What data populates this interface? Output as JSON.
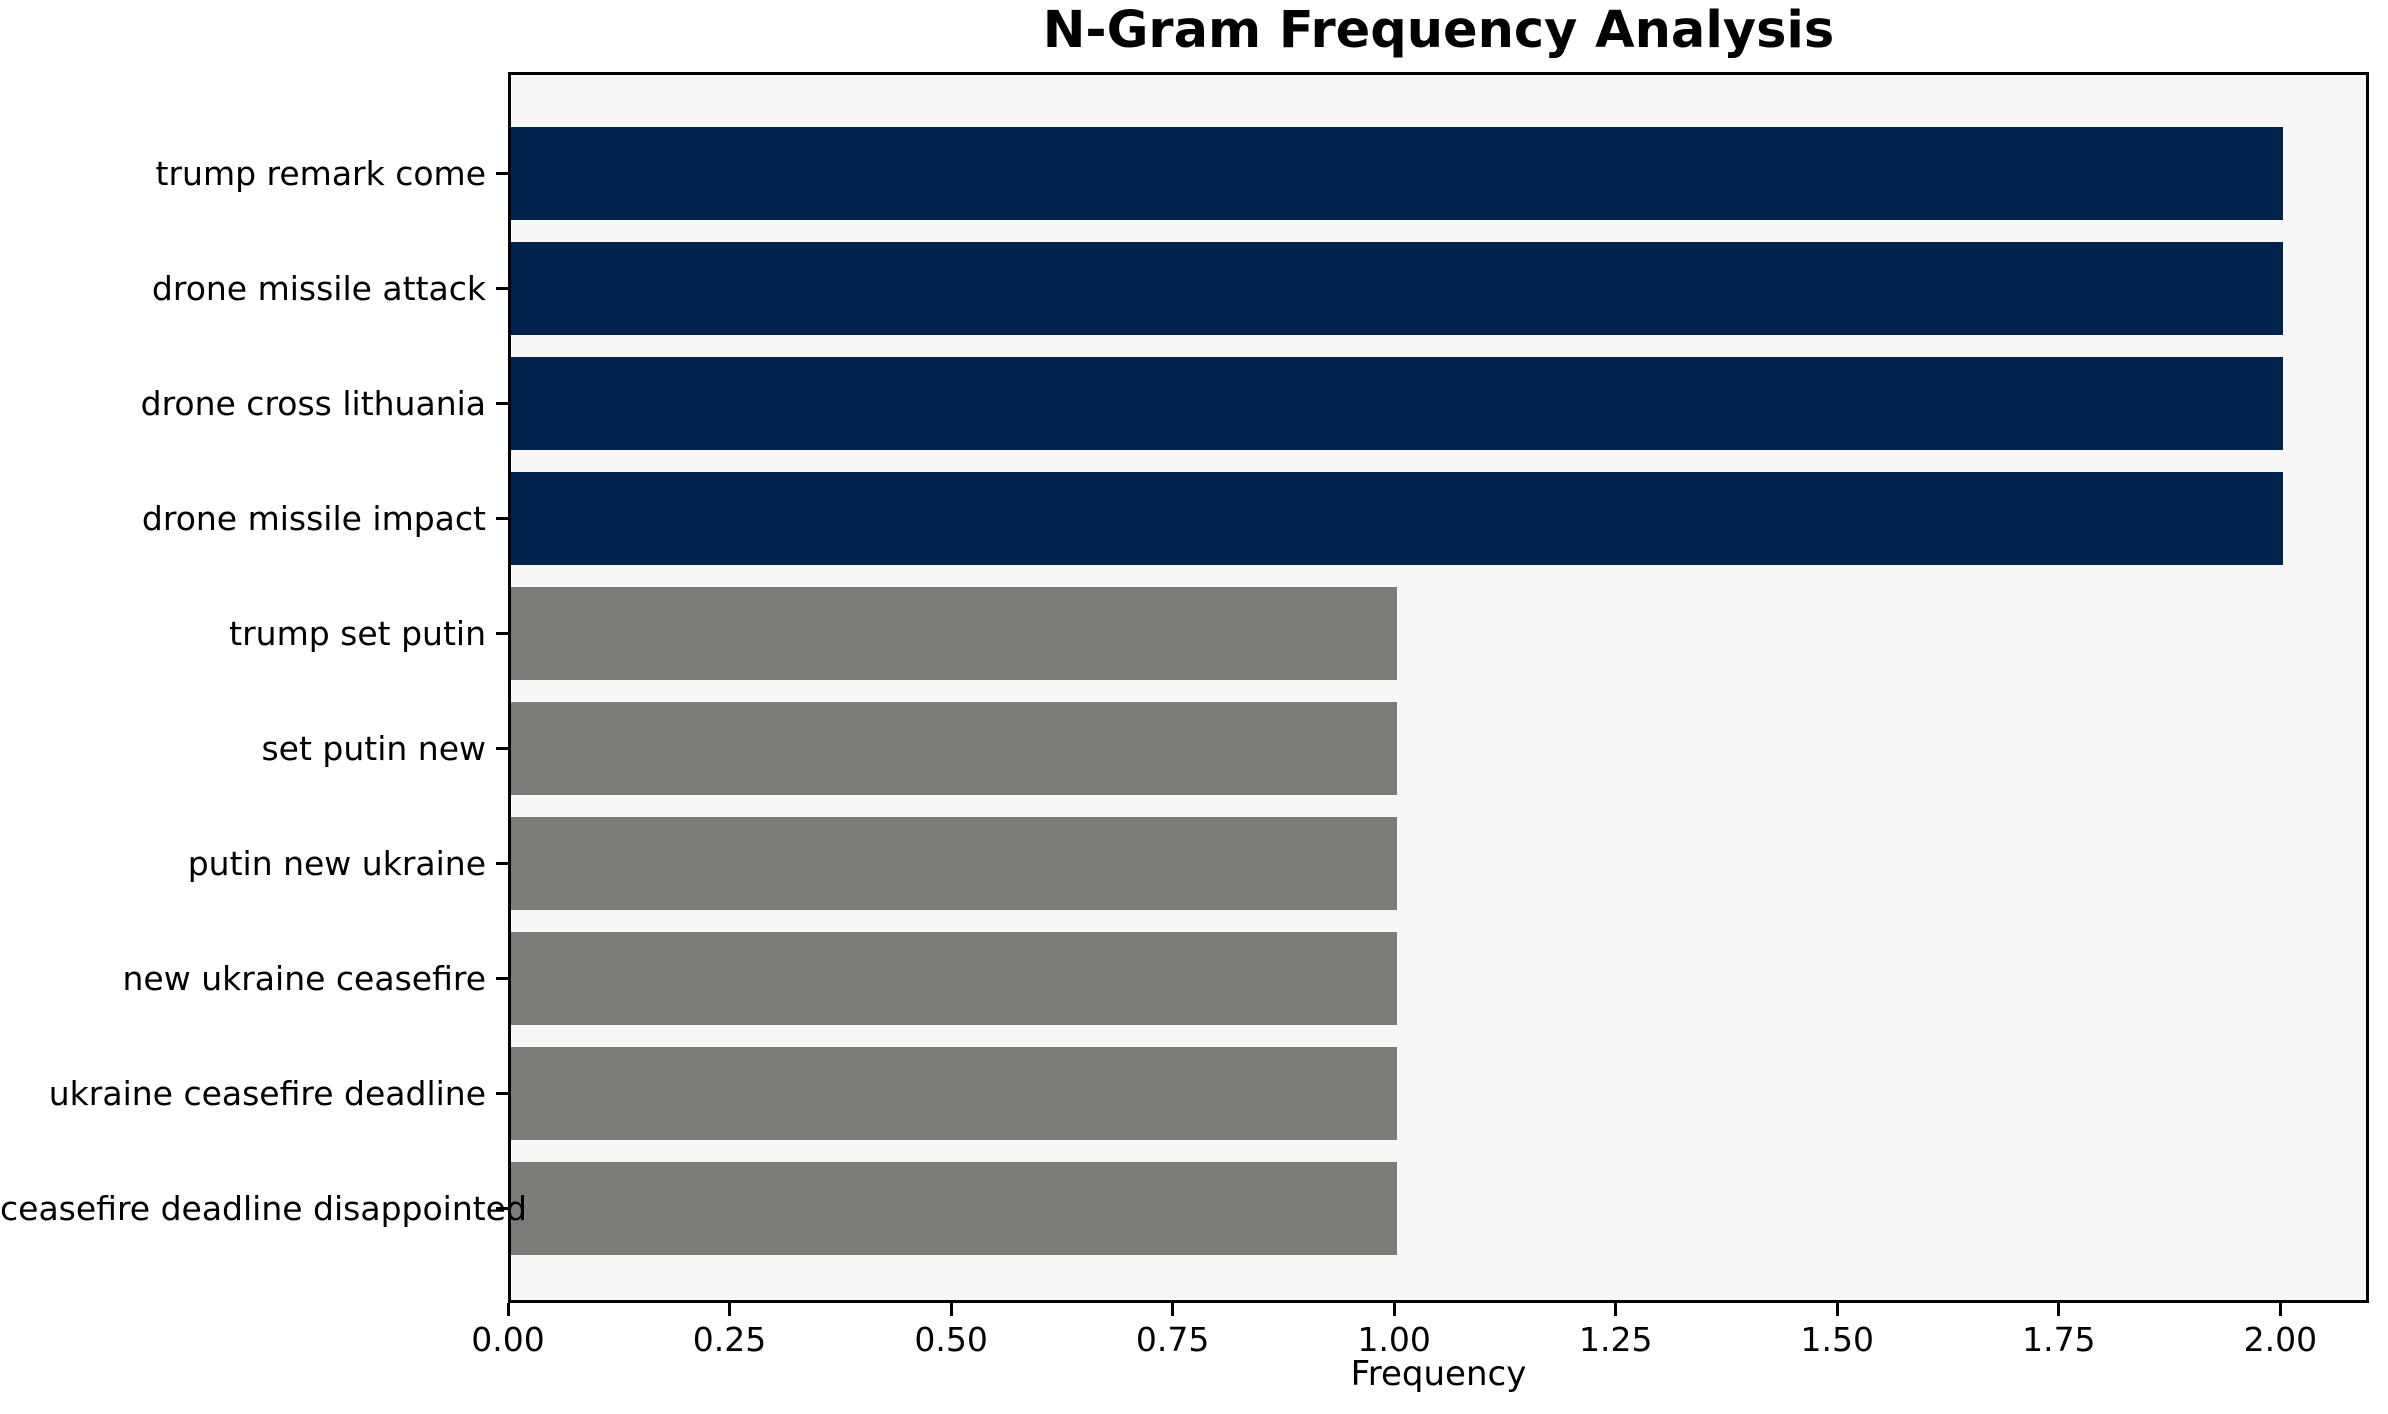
{
  "chart_data": {
    "type": "bar",
    "orientation": "horizontal",
    "title": "N-Gram Frequency Analysis",
    "xlabel": "Frequency",
    "ylabel": "",
    "categories": [
      "trump remark come",
      "drone missile attack",
      "drone cross lithuania",
      "drone missile impact",
      "trump set putin",
      "set putin new",
      "putin new ukraine",
      "new ukraine ceasefire",
      "ukraine ceasefire deadline",
      "ceasefire deadline disappointed"
    ],
    "values": [
      2,
      2,
      2,
      2,
      1,
      1,
      1,
      1,
      1,
      1
    ],
    "bar_colors": [
      "#00234e",
      "#00234e",
      "#00234e",
      "#00234e",
      "#7b7b78",
      "#7b7b78",
      "#7b7b78",
      "#7b7b78",
      "#7b7b78",
      "#7b7b78"
    ],
    "xlim": [
      0,
      2.1
    ],
    "xticks": [
      0.0,
      0.25,
      0.5,
      0.75,
      1.0,
      1.25,
      1.5,
      1.75,
      2.0
    ],
    "xtick_labels": [
      "0.00",
      "0.25",
      "0.50",
      "0.75",
      "1.00",
      "1.25",
      "1.50",
      "1.75",
      "2.00"
    ],
    "grid": false,
    "legend": "none",
    "colors": {
      "high_freq_bar": "#00234e",
      "low_freq_bar": "#7b7b78",
      "plot_background": "#f7f7f7",
      "figure_background": "#ffffff",
      "axis": "#000000",
      "text": "#000000"
    }
  }
}
